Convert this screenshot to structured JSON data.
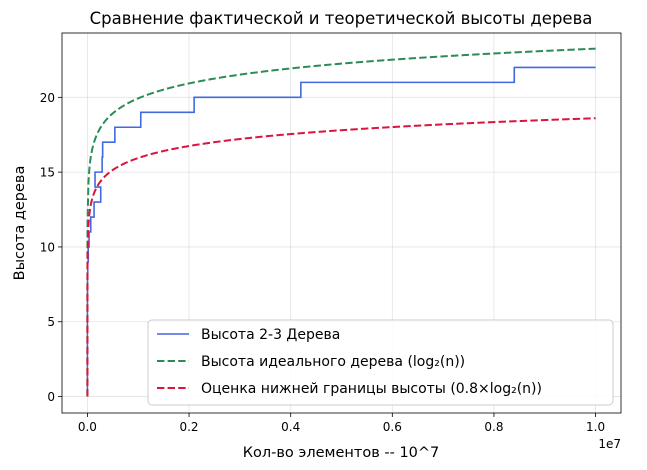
{
  "chart_data": {
    "type": "line",
    "title": "Сравнение фактической и теоретической высоты дерева",
    "xlabel": "Кол-во элементов -- 10^7",
    "ylabel": "Высота дерева",
    "x_offset_label": "1e7",
    "xlim": [
      -500000,
      10500000
    ],
    "ylim": [
      -1.1,
      24.3
    ],
    "x_ticks": [
      {
        "value": 0,
        "label": "0.0"
      },
      {
        "value": 2000000,
        "label": "0.2"
      },
      {
        "value": 4000000,
        "label": "0.4"
      },
      {
        "value": 6000000,
        "label": "0.6"
      },
      {
        "value": 8000000,
        "label": "0.8"
      },
      {
        "value": 10000000,
        "label": "1.0"
      }
    ],
    "y_ticks": [
      {
        "value": 0,
        "label": "0"
      },
      {
        "value": 5,
        "label": "5"
      },
      {
        "value": 10,
        "label": "10"
      },
      {
        "value": 15,
        "label": "15"
      },
      {
        "value": 20,
        "label": "20"
      }
    ],
    "grid": true,
    "legend_position": "lower-right",
    "series": [
      {
        "name": "Высота 2-3 Дерева",
        "color": "#4169e1",
        "style": "solid",
        "kind": "step",
        "x_max": 10000000,
        "y_start": 0,
        "steps": [
          {
            "x": 1,
            "y": 1
          },
          {
            "x": 3,
            "y": 2
          },
          {
            "x": 9,
            "y": 3
          },
          {
            "x": 27,
            "y": 4
          },
          {
            "x": 81,
            "y": 5
          },
          {
            "x": 243,
            "y": 6
          },
          {
            "x": 729,
            "y": 7
          },
          {
            "x": 2187,
            "y": 8
          },
          {
            "x": 6561,
            "y": 9
          },
          {
            "x": 16384,
            "y": 10
          },
          {
            "x": 32768,
            "y": 11
          },
          {
            "x": 65536,
            "y": 12
          },
          {
            "x": 131072,
            "y": 13
          },
          {
            "x": 262144,
            "y": 14
          },
          {
            "x": 150000,
            "y": 15
          },
          {
            "x": 290000,
            "y": 16
          },
          {
            "x": 300000,
            "y": 17
          },
          {
            "x": 540000,
            "y": 18
          },
          {
            "x": 1050000,
            "y": 19
          },
          {
            "x": 2100000,
            "y": 20
          },
          {
            "x": 4200000,
            "y": 21
          },
          {
            "x": 8400000,
            "y": 22
          }
        ]
      },
      {
        "name": "Высота идеального дерева (log₂(n))",
        "color": "#2e8b57",
        "style": "dashed",
        "kind": "function",
        "formula": "log2",
        "factor": 1.0,
        "x_min": 1,
        "x_max": 10000000
      },
      {
        "name": "Оценка нижней границы высоты (0.8×log₂(n))",
        "color": "#dc143c",
        "style": "dashed",
        "kind": "function",
        "formula": "log2",
        "factor": 0.8,
        "x_min": 1,
        "x_max": 10000000
      }
    ]
  }
}
